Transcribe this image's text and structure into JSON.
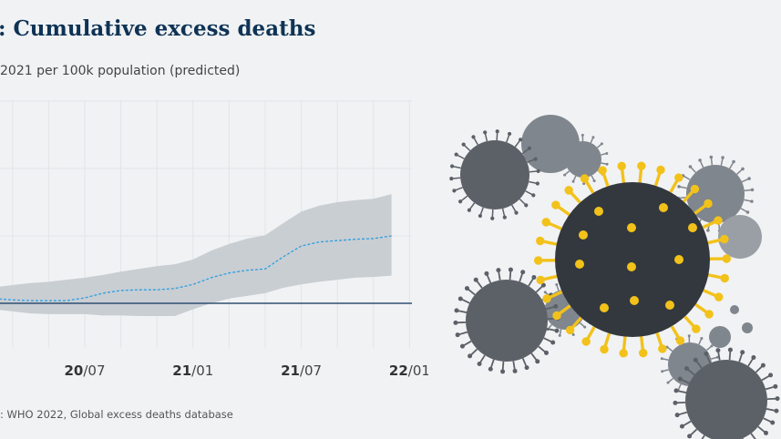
{
  "chart_data": {
    "type": "area",
    "title": ": Cumulative excess deaths",
    "subtitle": "2021 per 100k population (predicted)",
    "source": ": WHO 2022, Global excess deaths database",
    "x_ticks": [
      {
        "year": "20",
        "month": "/07",
        "date": "2020-07"
      },
      {
        "year": "21",
        "month": "/01",
        "date": "2021-01"
      },
      {
        "year": "21",
        "month": "/07",
        "date": "2021-07"
      },
      {
        "year": "22",
        "month": "/01",
        "date": "2022-01"
      }
    ],
    "x": [
      "2020-02",
      "2020-03",
      "2020-04",
      "2020-05",
      "2020-06",
      "2020-07",
      "2020-08",
      "2020-09",
      "2020-10",
      "2020-11",
      "2020-12",
      "2021-01",
      "2021-02",
      "2021-03",
      "2021-04",
      "2021-05",
      "2021-06",
      "2021-07",
      "2021-08",
      "2021-09",
      "2021-10",
      "2021-11",
      "2021-12"
    ],
    "series": [
      {
        "role": "mean",
        "style": "dashed",
        "color": "#2d9fe0",
        "values": [
          0.07,
          0.05,
          0.04,
          0.04,
          0.04,
          0.08,
          0.15,
          0.19,
          0.2,
          0.2,
          0.22,
          0.28,
          0.38,
          0.45,
          0.49,
          0.51,
          0.69,
          0.85,
          0.91,
          0.93,
          0.95,
          0.96,
          1.0
        ]
      },
      {
        "role": "upper",
        "color": "#c9ced3",
        "values": [
          0.24,
          0.27,
          0.3,
          0.32,
          0.35,
          0.38,
          0.42,
          0.47,
          0.51,
          0.55,
          0.58,
          0.65,
          0.78,
          0.88,
          0.96,
          1.01,
          1.19,
          1.36,
          1.45,
          1.5,
          1.53,
          1.55,
          1.62
        ]
      },
      {
        "role": "lower",
        "color": "#c9ced3",
        "values": [
          -0.09,
          -0.12,
          -0.15,
          -0.16,
          -0.16,
          -0.16,
          -0.18,
          -0.18,
          -0.19,
          -0.19,
          -0.19,
          -0.09,
          0,
          0.07,
          0.11,
          0.15,
          0.23,
          0.28,
          0.32,
          0.35,
          0.38,
          0.39,
          0.41
        ]
      }
    ],
    "baseline": 0,
    "baseline_color": "#2f4f73",
    "ylim": [
      -0.5,
      3.0
    ],
    "grid": true,
    "xlabel": "",
    "ylabel": ""
  },
  "illustration": {
    "subject": "virus-icon",
    "spike_color": "#f2c21a",
    "dark": "#33383e",
    "gray": "#6b7077"
  }
}
